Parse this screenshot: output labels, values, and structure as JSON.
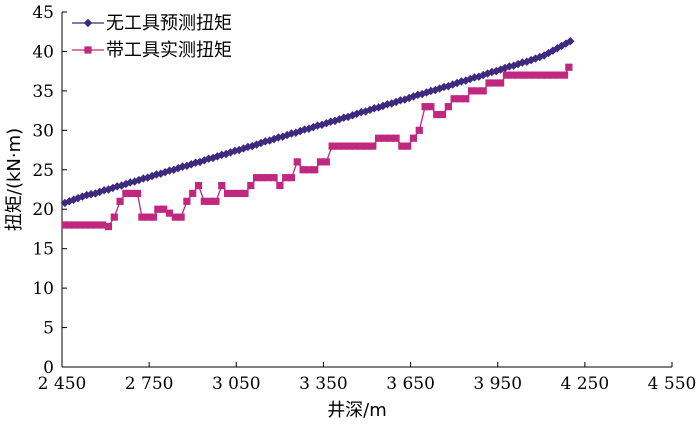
{
  "chart_data": {
    "type": "line",
    "xlabel": "井深/m",
    "ylabel": "扭矩/(kN·m)",
    "xlim": [
      2450,
      4550
    ],
    "ylim": [
      0,
      45
    ],
    "x_ticks": [
      2450,
      2750,
      3050,
      3350,
      3650,
      3950,
      4250,
      4550
    ],
    "x_tick_labels": [
      "2 450",
      "2 750",
      "3 050",
      "3 350",
      "3 650",
      "3 950",
      "4 250",
      "4 550"
    ],
    "y_ticks": [
      0,
      5,
      10,
      15,
      20,
      25,
      30,
      35,
      40,
      45
    ],
    "y_tick_labels": [
      "0",
      "5",
      "10",
      "15",
      "20",
      "25",
      "30",
      "35",
      "40",
      "45"
    ],
    "grid": false,
    "legend_position": "top-left",
    "series": [
      {
        "name": "无工具预测扭矩",
        "color": "#3d2a7e",
        "marker": "diamond",
        "x": [
          2460,
          2475,
          2490,
          2505,
          2520,
          2535,
          2550,
          2565,
          2580,
          2595,
          2610,
          2625,
          2640,
          2655,
          2670,
          2685,
          2700,
          2715,
          2730,
          2745,
          2760,
          2775,
          2790,
          2805,
          2820,
          2835,
          2850,
          2865,
          2880,
          2895,
          2910,
          2925,
          2940,
          2955,
          2970,
          2985,
          3000,
          3015,
          3030,
          3045,
          3060,
          3075,
          3090,
          3105,
          3120,
          3135,
          3150,
          3165,
          3180,
          3195,
          3210,
          3225,
          3240,
          3255,
          3270,
          3285,
          3300,
          3315,
          3330,
          3345,
          3360,
          3375,
          3390,
          3405,
          3420,
          3435,
          3450,
          3465,
          3480,
          3495,
          3510,
          3525,
          3540,
          3555,
          3570,
          3585,
          3600,
          3615,
          3630,
          3645,
          3660,
          3675,
          3690,
          3705,
          3720,
          3735,
          3750,
          3765,
          3780,
          3795,
          3810,
          3825,
          3840,
          3855,
          3870,
          3885,
          3900,
          3915,
          3930,
          3945,
          3960,
          3975,
          3990,
          4005,
          4020,
          4035,
          4050,
          4065,
          4080,
          4095,
          4110,
          4125,
          4140,
          4155,
          4170,
          4185,
          4200
        ],
        "y": [
          20.8,
          21.0,
          21.2,
          21.4,
          21.6,
          21.8,
          21.9,
          22.0,
          22.2,
          22.4,
          22.5,
          22.7,
          22.9,
          23.0,
          23.2,
          23.4,
          23.5,
          23.7,
          23.9,
          24.0,
          24.2,
          24.4,
          24.5,
          24.7,
          24.9,
          25.0,
          25.2,
          25.4,
          25.5,
          25.7,
          25.9,
          26.0,
          26.2,
          26.4,
          26.5,
          26.7,
          26.9,
          27.0,
          27.2,
          27.4,
          27.5,
          27.7,
          27.9,
          28.0,
          28.2,
          28.4,
          28.6,
          28.7,
          28.9,
          29.1,
          29.2,
          29.4,
          29.6,
          29.7,
          29.9,
          30.1,
          30.2,
          30.4,
          30.6,
          30.7,
          30.9,
          31.1,
          31.2,
          31.4,
          31.6,
          31.7,
          31.9,
          32.1,
          32.3,
          32.4,
          32.6,
          32.8,
          32.9,
          33.1,
          33.3,
          33.4,
          33.6,
          33.8,
          33.9,
          34.1,
          34.3,
          34.5,
          34.6,
          34.8,
          35.0,
          35.1,
          35.3,
          35.5,
          35.6,
          35.8,
          36.0,
          36.2,
          36.3,
          36.5,
          36.7,
          36.8,
          37.0,
          37.2,
          37.4,
          37.5,
          37.7,
          37.9,
          38.1,
          38.2,
          38.4,
          38.6,
          38.7,
          38.9,
          39.1,
          39.3,
          39.5,
          39.8,
          40.1,
          40.4,
          40.7,
          41.0,
          41.3
        ]
      },
      {
        "name": "带工具实测扭矩",
        "color": "#c0287f",
        "marker": "square",
        "x": [
          2460,
          2475,
          2490,
          2510,
          2530,
          2550,
          2570,
          2590,
          2610,
          2630,
          2650,
          2670,
          2690,
          2710,
          2725,
          2745,
          2765,
          2780,
          2800,
          2820,
          2840,
          2860,
          2880,
          2900,
          2920,
          2940,
          2960,
          2980,
          3000,
          3020,
          3040,
          3060,
          3080,
          3100,
          3120,
          3140,
          3160,
          3180,
          3200,
          3220,
          3240,
          3260,
          3280,
          3300,
          3320,
          3340,
          3360,
          3380,
          3400,
          3420,
          3440,
          3460,
          3480,
          3500,
          3520,
          3540,
          3560,
          3580,
          3600,
          3620,
          3640,
          3660,
          3680,
          3700,
          3720,
          3740,
          3760,
          3780,
          3800,
          3820,
          3840,
          3860,
          3880,
          3900,
          3920,
          3940,
          3960,
          3980,
          4000,
          4020,
          4040,
          4060,
          4080,
          4100,
          4120,
          4140,
          4160,
          4180,
          4195
        ],
        "y": [
          18.0,
          18.0,
          18.0,
          18.0,
          18.0,
          18.0,
          18.0,
          18.0,
          17.8,
          19.0,
          21.0,
          22.0,
          22.0,
          22.0,
          19.0,
          19.0,
          19.0,
          20.0,
          20.0,
          19.5,
          19.0,
          19.0,
          21.0,
          22.0,
          23.0,
          21.0,
          21.0,
          21.0,
          23.0,
          22.0,
          22.0,
          22.0,
          22.0,
          23.0,
          24.0,
          24.0,
          24.0,
          24.0,
          23.0,
          24.0,
          24.0,
          26.0,
          25.0,
          25.0,
          25.0,
          26.0,
          26.0,
          28.0,
          28.0,
          28.0,
          28.0,
          28.0,
          28.0,
          28.0,
          28.0,
          29.0,
          29.0,
          29.0,
          29.0,
          28.0,
          28.0,
          29.0,
          30.0,
          33.0,
          33.0,
          32.0,
          32.0,
          33.0,
          34.0,
          34.0,
          34.0,
          35.0,
          35.0,
          35.0,
          36.0,
          36.0,
          36.0,
          37.0,
          37.0,
          37.0,
          37.0,
          37.0,
          37.0,
          37.0,
          37.0,
          37.0,
          37.0,
          37.0,
          38.0
        ]
      }
    ]
  }
}
